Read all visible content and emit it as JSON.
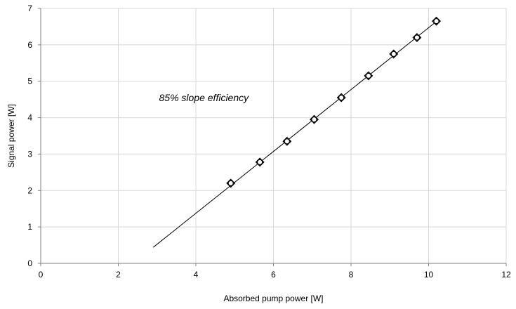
{
  "chart_data": {
    "type": "scatter",
    "xlabel": "Absorbed pump power [W]",
    "ylabel": "Signal power [W]",
    "xlim": [
      0,
      12
    ],
    "ylim": [
      0,
      7
    ],
    "xticks": [
      0,
      2,
      4,
      6,
      8,
      10,
      12
    ],
    "yticks": [
      0,
      1,
      2,
      3,
      4,
      5,
      6,
      7
    ],
    "grid": true,
    "legend": "none",
    "annotation": "85% slope efficiency",
    "series": [
      {
        "type": "scatter",
        "marker": "diamond",
        "x": [
          4.9,
          5.65,
          6.35,
          7.05,
          7.75,
          8.45,
          9.1,
          9.7,
          10.2
        ],
        "y": [
          2.2,
          2.78,
          3.35,
          3.95,
          4.55,
          5.15,
          5.75,
          6.2,
          6.65
        ]
      },
      {
        "type": "line",
        "x": [
          2.9,
          10.2
        ],
        "y": [
          0.44,
          6.64
        ]
      }
    ],
    "colors": {
      "grid": "#d8d8d8",
      "axis": "#808080",
      "line": "#000000",
      "marker": "#000000"
    }
  }
}
